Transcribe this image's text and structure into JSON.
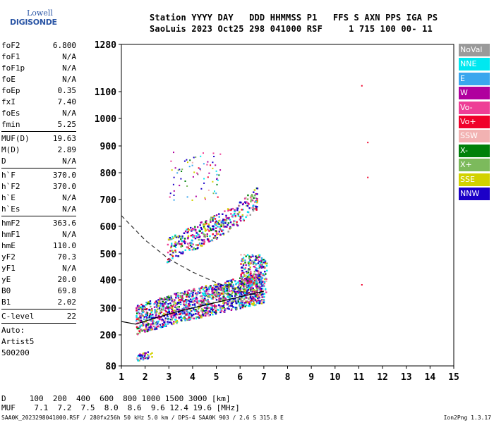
{
  "logo": {
    "line1": "Lowell",
    "line2": "DIGISONDE"
  },
  "header": {
    "line1": "Station YYYY DAY   DDD HHMMSS P1   FFS S AXN PPS IGA PS",
    "line2": "SaoLuis 2023 Oct25 298 041000 RSF     1 715 100 00- 11"
  },
  "params": [
    {
      "label": "foF2",
      "value": "6.800"
    },
    {
      "label": "foF1",
      "value": "N/A"
    },
    {
      "label": "foF1p",
      "value": "N/A"
    },
    {
      "label": "foE",
      "value": "N/A"
    },
    {
      "label": "foEp",
      "value": "0.35"
    },
    {
      "label": "fxI",
      "value": "7.40"
    },
    {
      "label": "foEs",
      "value": "N/A"
    },
    {
      "label": "fmin",
      "value": "5.25"
    },
    {
      "sep": true
    },
    {
      "label": "MUF(D)",
      "value": "19.63"
    },
    {
      "label": "M(D)",
      "value": "2.89"
    },
    {
      "label": "D",
      "value": "N/A"
    },
    {
      "sep": true
    },
    {
      "label": "h`F",
      "value": "370.0"
    },
    {
      "label": "h`F2",
      "value": "370.0"
    },
    {
      "label": "h`E",
      "value": "N/A"
    },
    {
      "label": "h`Es",
      "value": "N/A"
    },
    {
      "sep": true
    },
    {
      "label": "hmF2",
      "value": "363.6"
    },
    {
      "label": "hmF1",
      "value": "N/A"
    },
    {
      "label": "hmE",
      "value": "110.0"
    },
    {
      "label": "yF2",
      "value": "70.3"
    },
    {
      "label": "yF1",
      "value": "N/A"
    },
    {
      "label": "yE",
      "value": "20.0"
    },
    {
      "label": "B0",
      "value": "69.8"
    },
    {
      "label": "B1",
      "value": "2.02"
    },
    {
      "sep": true
    },
    {
      "label": "C-level",
      "value": "22"
    },
    {
      "sep": true
    },
    {
      "text": "Auto:"
    },
    {
      "text": "Artist5"
    },
    {
      "text": "500200"
    }
  ],
  "legend": [
    {
      "label": "NoVal",
      "color": "#9a9a9a"
    },
    {
      "label": "NNE",
      "color": "#00e8f0"
    },
    {
      "label": "E",
      "color": "#3aa6ee"
    },
    {
      "label": "W",
      "color": "#b0009e"
    },
    {
      "label": "Vo-",
      "color": "#ee3e96"
    },
    {
      "label": "Vo+",
      "color": "#f0002a"
    },
    {
      "label": "SSW",
      "color": "#f2b2b2"
    },
    {
      "label": "X-",
      "color": "#00800a"
    },
    {
      "label": "X+",
      "color": "#7cba5c"
    },
    {
      "label": "SSE",
      "color": "#d2d200"
    },
    {
      "label": "NNW",
      "color": "#1c00c8"
    }
  ],
  "footer": {
    "line1": "D     100  200  400  600  800 1000 1500 3000 [km]",
    "line2": "MUF    7.1  7.2  7.5  8.0  8.6  9.6 12.4 19.6 [MHz]",
    "line3": "SAA0K_2023298041000.RSF / 280fx256h 50 kHz 5.0 km / DPS-4 SAA0K 903 / 2.6 S 315.8 E",
    "version": "Ion2Png 1.3.17"
  },
  "chart_data": {
    "type": "scatter",
    "x_range": [
      1,
      15
    ],
    "y_range": [
      80,
      1280
    ],
    "x_ticks": [
      "1",
      "2",
      "3",
      "4",
      "5",
      "6",
      "7",
      "8",
      "9",
      "10",
      "11",
      "12",
      "13",
      "14",
      "15"
    ],
    "y_ticks": [
      "80",
      "200",
      "300",
      "400",
      "500",
      "600",
      "700",
      "800",
      "900",
      "1000",
      "1100",
      "1280"
    ],
    "scale": "ionogram (frequency MHz vs virtual height km)",
    "traces": [
      {
        "name": "F2 O-trace",
        "x": [
          1.6,
          2.5,
          3.5,
          4.5,
          5.5,
          6.5,
          7.0
        ],
        "y": [
          240,
          265,
          290,
          310,
          330,
          350,
          360
        ]
      },
      {
        "name": "F2 multi-hop",
        "x": [
          2.9,
          4.0,
          5.0,
          6.0,
          6.7
        ],
        "y": [
          500,
          545,
          590,
          640,
          690
        ]
      },
      {
        "name": "E echo",
        "x": [
          1.6,
          2.3
        ],
        "y": [
          110,
          125
        ]
      }
    ],
    "profile_curve": {
      "x": [
        1,
        2,
        3,
        4,
        5,
        6,
        6.8
      ],
      "y": [
        640,
        550,
        480,
        430,
        390,
        360,
        345
      ]
    },
    "outliers": [
      {
        "x": 11.1,
        "y": 1125
      },
      {
        "x": 11.35,
        "y": 915
      },
      {
        "x": 11.35,
        "y": 785
      },
      {
        "x": 11.1,
        "y": 385
      }
    ]
  }
}
